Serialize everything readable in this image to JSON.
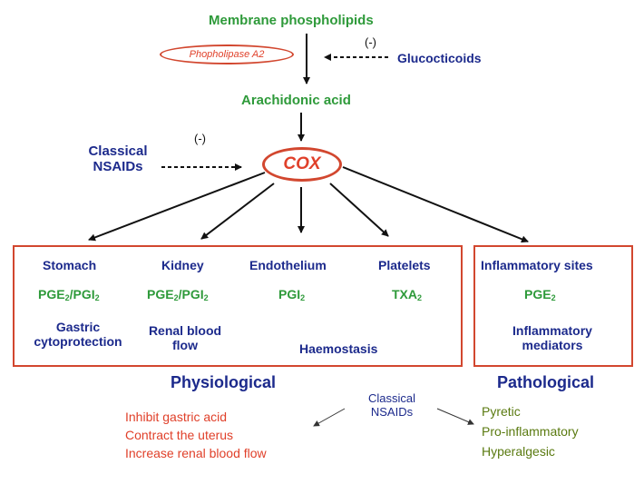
{
  "top": {
    "membrane_phospholipids": "Membrane phospholipids",
    "phospholipase_a2": "Phopholipase A2",
    "inhibit_sign_top": "(-)",
    "glucocorticoids": "Glucocticoids",
    "arachidonic_acid": "Arachidonic acid",
    "classical_nsaids": [
      "Classical",
      "NSAIDs"
    ],
    "inhibit_sign_cox": "(-)",
    "cox": "COX"
  },
  "physiological": {
    "sites": [
      {
        "name": "Stomach",
        "mediator": "PGE",
        "mediator_sub": "2",
        "mediator_tail": "/PGI",
        "mediator_tail_sub": "2",
        "effect": [
          "Gastric",
          "cytoprotection"
        ]
      },
      {
        "name": "Kidney",
        "mediator": "PGE",
        "mediator_sub": "2",
        "mediator_tail": "/PGI",
        "mediator_tail_sub": "2",
        "effect": [
          "Renal blood",
          "flow"
        ]
      },
      {
        "name": "Endothelium",
        "mediator": "PGI",
        "mediator_sub": "2"
      },
      {
        "name": "Platelets",
        "mediator": "TXA",
        "mediator_sub": "2"
      }
    ],
    "shared_effect": "Haemostasis",
    "label": "Physiological"
  },
  "pathological": {
    "site": "Inflammatory sites",
    "mediator": "PGE",
    "mediator_sub": "2",
    "effect": [
      "Inflammatory",
      "mediators"
    ],
    "label": "Pathological"
  },
  "bottom": {
    "classical_nsaids": [
      "Classical",
      "NSAIDs"
    ],
    "physiological_effects": [
      "Inhibit gastric acid",
      "Contract the uterus",
      "Increase renal blood flow"
    ],
    "pathological_effects": [
      "Pyretic",
      "Pro-inflammatory",
      "Hyperalgesic"
    ]
  },
  "colors": {
    "green": "#2e9a3a",
    "navy": "#1c2a8c",
    "red": "#e0402a",
    "olive": "#5a7a10",
    "box_border": "#d2472f"
  }
}
